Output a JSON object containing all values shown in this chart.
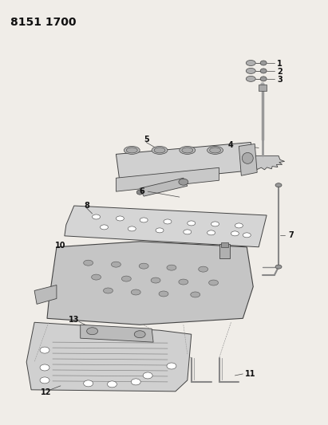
{
  "title": "8151 1700",
  "bg_color": "#f0ede8",
  "line_color": "#444444",
  "label_color": "#111111",
  "label_fontsize": 7.0,
  "fig_width": 4.11,
  "fig_height": 5.33,
  "dpi": 100
}
